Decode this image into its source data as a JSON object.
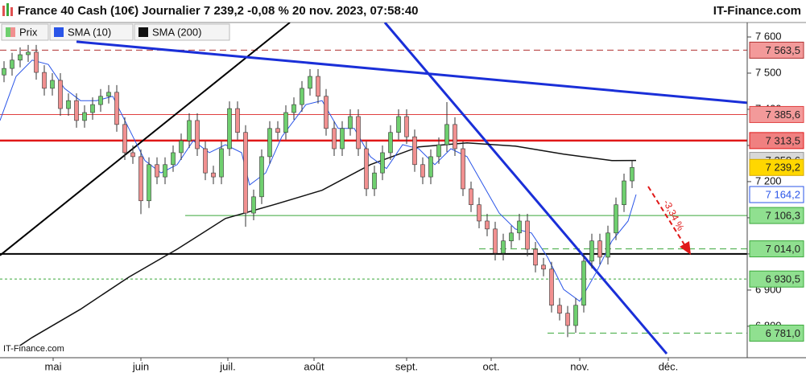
{
  "chart_data": {
    "type": "candlestick",
    "title": "France 40 Cash (10€) Journalier 7 239,2 -0,08 % 20 nov. 2023, 07:58:40",
    "source": "IT-Finance.com",
    "watermark": "IT-Finance.com",
    "annotation": "-3,34 %",
    "xlim": [
      -0.5,
      92.3
    ],
    "ylim": [
      6713,
      7640
    ],
    "xticks": [
      {
        "value": 6.1,
        "label": "mai"
      },
      {
        "value": 17,
        "label": "juin"
      },
      {
        "value": 27.8,
        "label": "juil."
      },
      {
        "value": 38.5,
        "label": "août"
      },
      {
        "value": 50,
        "label": "sept."
      },
      {
        "value": 60.5,
        "label": "oct."
      },
      {
        "value": 71.5,
        "label": "nov."
      },
      {
        "value": 82.5,
        "label": "déc."
      }
    ],
    "yticks": [
      {
        "value": 6800,
        "label": "6 800"
      },
      {
        "value": 6900,
        "label": "6 900"
      },
      {
        "value": 7000,
        "label": "7 000"
      },
      {
        "value": 7100,
        "label": "7 100"
      },
      {
        "value": 7200,
        "label": "7 200"
      },
      {
        "value": 7300,
        "label": "7 300"
      },
      {
        "value": 7400,
        "label": "7 400"
      },
      {
        "value": 7500,
        "label": "7 500"
      },
      {
        "value": 7600,
        "label": "7 600"
      }
    ],
    "candles": {
      "name": "Prix",
      "up_color": "#6fcf6f",
      "down_color": "#f19090",
      "open": [
        7495,
        7513,
        7536,
        7551,
        7558,
        7502,
        7458,
        7480,
        7402,
        7424,
        7369,
        7391,
        7413,
        7436,
        7447,
        7358,
        7280,
        7269,
        7147,
        7247,
        7213,
        7247,
        7280,
        7313,
        7369,
        7291,
        7224,
        7213,
        7291,
        7402,
        7336,
        7113,
        7158,
        7269,
        7347,
        7336,
        7391,
        7413,
        7458,
        7491,
        7436,
        7347,
        7291,
        7347,
        7380,
        7291,
        7180,
        7224,
        7280,
        7336,
        7380,
        7324,
        7247,
        7213,
        7269,
        7302,
        7358,
        7291,
        7180,
        7136,
        7091,
        7069,
        7002,
        7036,
        7058,
        7091,
        7013,
        6969,
        6958,
        6858,
        6836,
        6802,
        6858,
        6980,
        7036,
        6991,
        7058,
        7136,
        7202
      ],
      "high": [
        7533,
        7556,
        7571,
        7578,
        7578,
        7522,
        7500,
        7500,
        7444,
        7444,
        7411,
        7433,
        7456,
        7467,
        7467,
        7378,
        7300,
        7289,
        7267,
        7267,
        7267,
        7300,
        7333,
        7389,
        7389,
        7311,
        7244,
        7311,
        7422,
        7422,
        7356,
        7178,
        7289,
        7367,
        7367,
        7411,
        7433,
        7478,
        7511,
        7511,
        7456,
        7367,
        7367,
        7400,
        7400,
        7311,
        7244,
        7300,
        7356,
        7400,
        7400,
        7344,
        7267,
        7289,
        7322,
        7420,
        7378,
        7311,
        7200,
        7156,
        7111,
        7089,
        7056,
        7078,
        7111,
        7111,
        7033,
        6989,
        6978,
        6878,
        6856,
        6878,
        7000,
        7056,
        7056,
        7078,
        7156,
        7222,
        7258.6
      ],
      "low": [
        7475,
        7493,
        7516,
        7531,
        7482,
        7438,
        7438,
        7382,
        7382,
        7349,
        7349,
        7371,
        7393,
        7416,
        7338,
        7260,
        7249,
        7110,
        7127,
        7193,
        7193,
        7227,
        7260,
        7293,
        7271,
        7204,
        7193,
        7193,
        7271,
        7316,
        7075,
        7093,
        7138,
        7249,
        7316,
        7316,
        7371,
        7393,
        7438,
        7416,
        7327,
        7271,
        7271,
        7327,
        7271,
        7160,
        7160,
        7204,
        7260,
        7316,
        7304,
        7227,
        7193,
        7193,
        7249,
        7282,
        7271,
        7160,
        7116,
        7071,
        7049,
        6982,
        6982,
        7016,
        7038,
        6993,
        6949,
        6938,
        6838,
        6816,
        6770,
        6782,
        6838,
        6960,
        6971,
        6971,
        7038,
        7116,
        7182
      ],
      "close": [
        7513,
        7536,
        7551,
        7558,
        7502,
        7458,
        7480,
        7402,
        7424,
        7369,
        7391,
        7413,
        7436,
        7447,
        7358,
        7280,
        7269,
        7147,
        7247,
        7213,
        7247,
        7280,
        7313,
        7369,
        7291,
        7224,
        7213,
        7291,
        7402,
        7336,
        7113,
        7158,
        7269,
        7347,
        7336,
        7391,
        7413,
        7458,
        7491,
        7436,
        7347,
        7291,
        7347,
        7380,
        7291,
        7180,
        7224,
        7280,
        7336,
        7380,
        7324,
        7247,
        7213,
        7269,
        7302,
        7358,
        7291,
        7180,
        7136,
        7091,
        7069,
        7002,
        7036,
        7058,
        7091,
        7013,
        6969,
        6958,
        6858,
        6836,
        6802,
        6858,
        6980,
        7036,
        6991,
        7058,
        7136,
        7202,
        7239.2
      ]
    },
    "series": [
      {
        "name": "SMA (10)",
        "color": "#2a55e8",
        "width": 1,
        "x": [
          -0.5,
          1.5,
          3.5,
          5.5,
          7.5,
          9.5,
          11.5,
          13.5,
          15.5,
          17.5,
          19.5,
          21.5,
          23.5,
          25.5,
          27.5,
          29.5,
          30.5,
          32.5,
          34.5,
          37.5,
          39.5,
          41.5,
          43.5,
          45.5,
          47.5,
          49.5,
          51.5,
          53.5,
          55.5,
          57.5,
          59.5,
          61.5,
          63.5,
          65.5,
          67.5,
          69.5,
          71.5,
          73.5,
          75.5,
          77.5,
          78.5
        ],
        "values": [
          7369,
          7491,
          7536,
          7524,
          7458,
          7424,
          7424,
          7436,
          7347,
          7258,
          7224,
          7247,
          7313,
          7280,
          7302,
          7280,
          7191,
          7224,
          7324,
          7413,
          7424,
          7347,
          7347,
          7269,
          7236,
          7302,
          7291,
          7247,
          7291,
          7269,
          7191,
          7113,
          7069,
          7058,
          6991,
          6902,
          6869,
          6947,
          7036,
          7091,
          7164.2
        ]
      },
      {
        "name": "SMA (200)",
        "color": "#111111",
        "width": 1.5,
        "x": [
          2,
          3.5,
          9.5,
          15.5,
          21.5,
          27.5,
          33.5,
          39.5,
          45.5,
          51.5,
          57.5,
          63.5,
          69.5,
          75.5,
          78.5
        ],
        "values": [
          6747,
          6769,
          6847,
          6936,
          7013,
          7098,
          7136,
          7176,
          7247,
          7296,
          7307,
          7298,
          7276,
          7258,
          7258.6
        ]
      }
    ],
    "levels": [
      {
        "value": 7563.5,
        "label": "7 563,5",
        "line": "dashed",
        "color": "#b03030",
        "fill": "#f39a9a",
        "text_color": "#222222"
      },
      {
        "value": 7385.6,
        "label": "7 385,6",
        "line": "solid",
        "color": "#e04040",
        "fill": "#f39a9a",
        "text_color": "#222222"
      },
      {
        "value": 7313.5,
        "label": "7 313,5",
        "line": "thick",
        "color": "#e01818",
        "fill": "#f08080",
        "text_color": "#222222"
      },
      {
        "value": 7258.6,
        "label": "7 258,6",
        "line": "none",
        "color": "#999999",
        "fill": "#d8d8d8",
        "text_color": "#222222"
      },
      {
        "value": 7239.2,
        "label": "7 239,2",
        "line": "none",
        "color": "#d4a800",
        "fill": "#ffd700",
        "text_color": "#222222"
      },
      {
        "value": 7164.2,
        "label": "7 164,2",
        "line": "none",
        "color": "#2a55e8",
        "fill": "#ffffff",
        "text_color": "#2a55e8"
      },
      {
        "value": 7106.3,
        "label": "7 106,3",
        "line": "solid",
        "from": 22.5,
        "color": "#3aa83a",
        "fill": "#90e090",
        "text_color": "#222222"
      },
      {
        "value": 7014.0,
        "label": "7 014,0",
        "line": "dashed",
        "from": 59,
        "color": "#3aa83a",
        "fill": "#90e090",
        "text_color": "#222222"
      },
      {
        "value": 6930.5,
        "label": "6 930,5",
        "line": "dotted",
        "color": "#3aa83a",
        "fill": "#90e090",
        "text_color": "#222222"
      },
      {
        "value": 6781.0,
        "label": "6 781,0",
        "line": "dashed",
        "from": 67.5,
        "color": "#3aa83a",
        "fill": "#90e090",
        "text_color": "#222222"
      }
    ],
    "trendlines": [
      {
        "color": "#000000",
        "width": 2,
        "x": [
          -0.5,
          92.3
        ],
        "y": [
          7000,
          7000
        ]
      },
      {
        "color": "#000000",
        "width": 2,
        "x": [
          -0.5,
          35.5
        ],
        "y": [
          6996,
          7640
        ]
      },
      {
        "color": "#1a2fd8",
        "width": 3,
        "x": [
          9,
          92.3
        ],
        "y": [
          7587,
          7418
        ]
      },
      {
        "color": "#1a2fd8",
        "width": 3,
        "x": [
          47.3,
          82.3
        ],
        "y": [
          7640,
          6724
        ]
      }
    ]
  }
}
